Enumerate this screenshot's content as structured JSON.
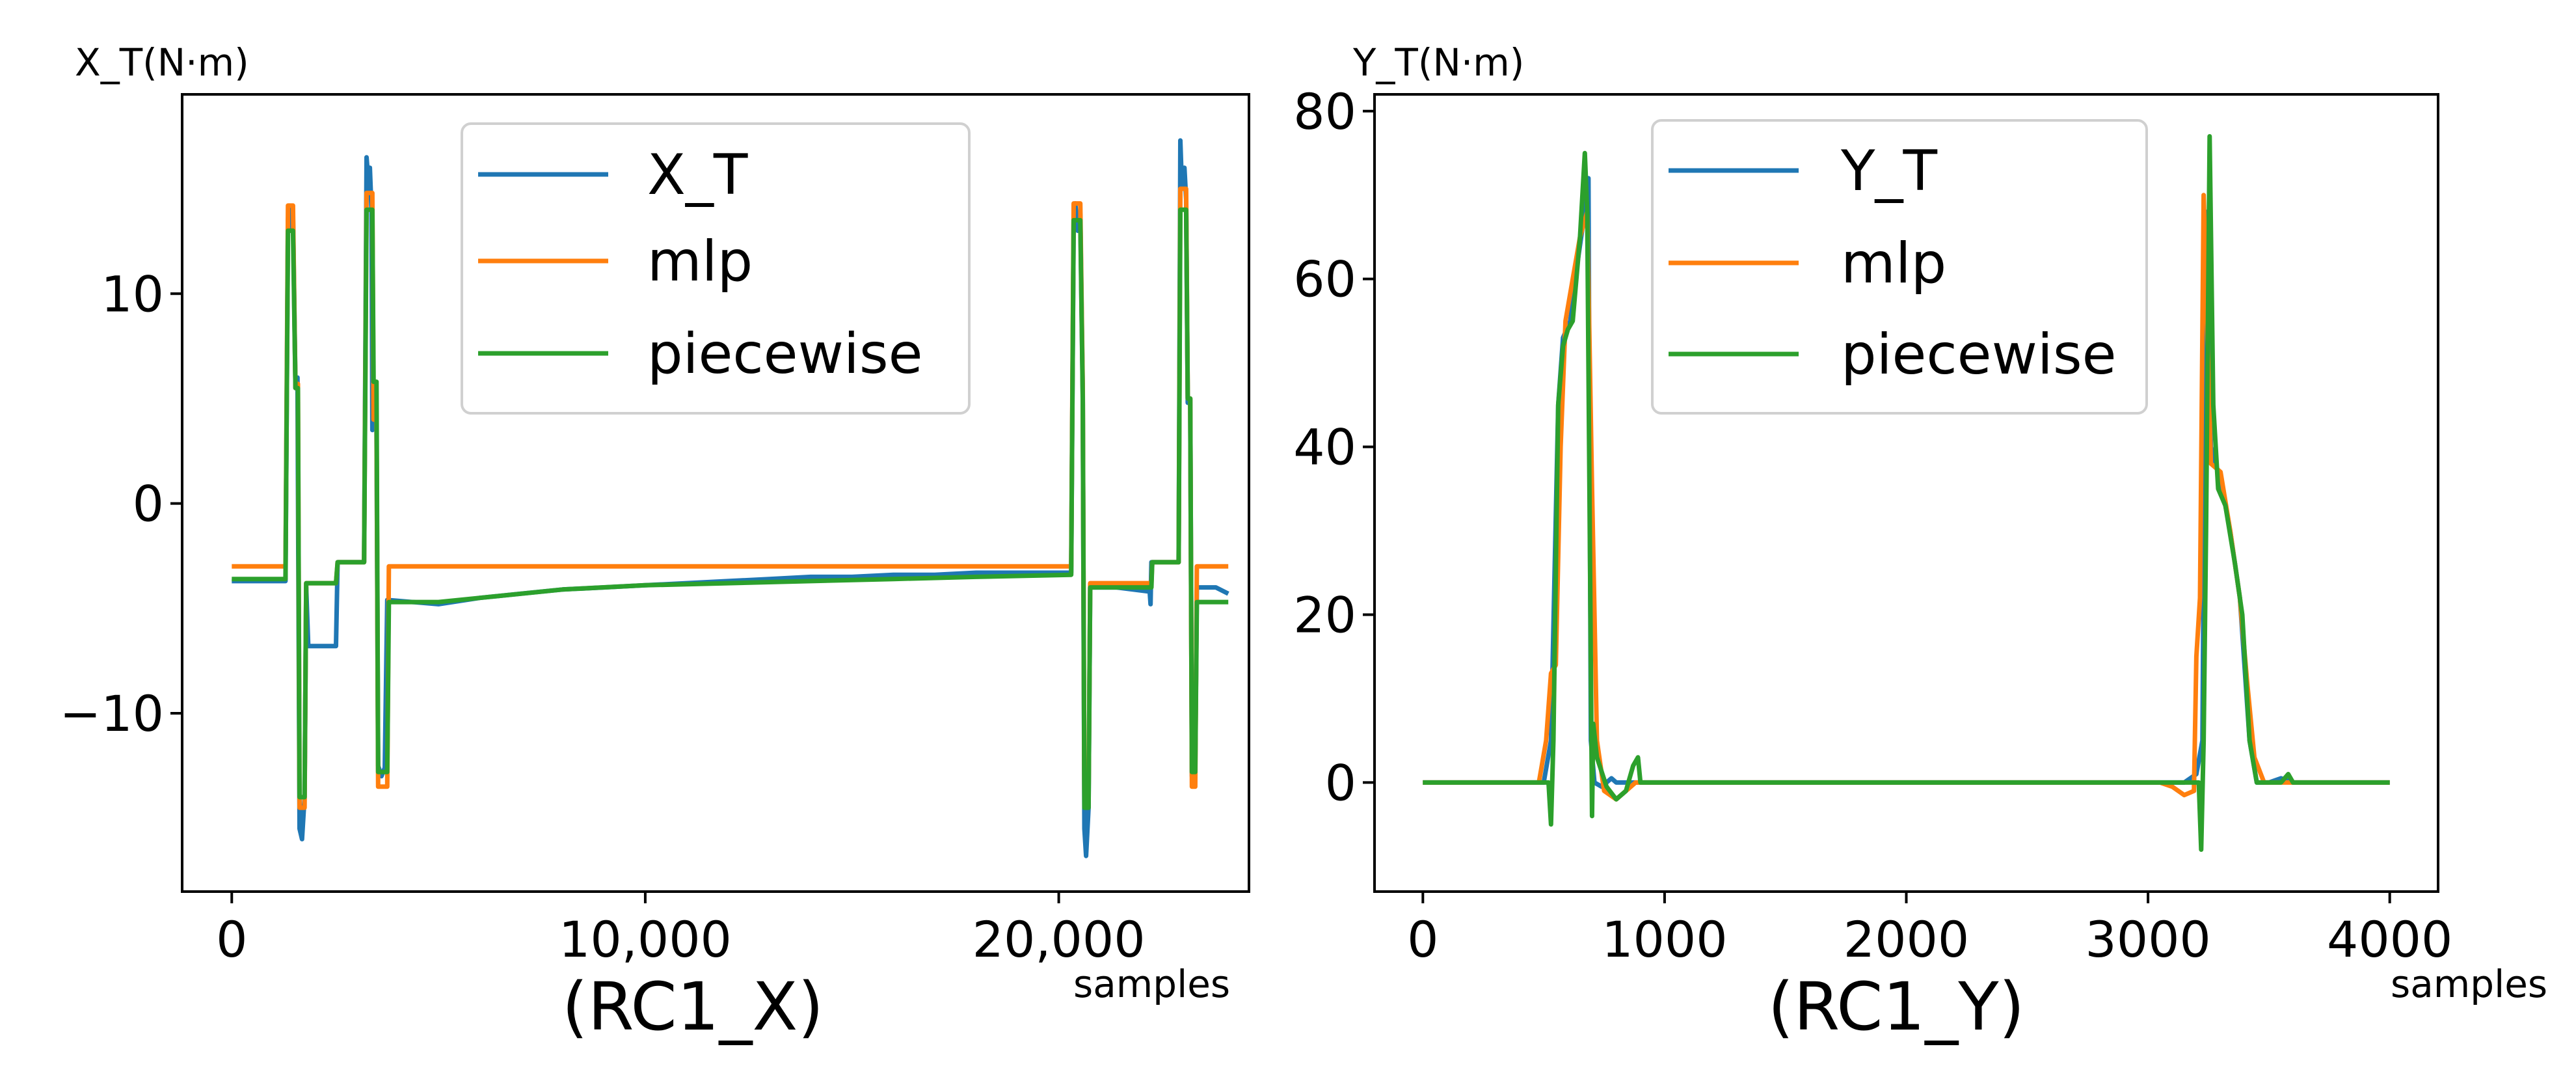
{
  "chart_data": [
    {
      "type": "line",
      "caption": "(RC1_X)",
      "ylabel": "X_T(N·m)",
      "xlabel": "samples",
      "xlim": [
        -1200,
        24600
      ],
      "ylim": [
        -18.5,
        19.5
      ],
      "xticks": [
        0,
        10000,
        20000
      ],
      "xtick_labels": [
        "0",
        "10,000",
        "20,000"
      ],
      "yticks": [
        10,
        0,
        -10
      ],
      "ytick_labels": [
        "10",
        "0",
        "−10"
      ],
      "grid": false,
      "legend_position": "top-center",
      "legend": [
        "X_T",
        "mlp",
        "piecewise"
      ],
      "series": [
        {
          "name": "X_T",
          "color": "#1f77b4",
          "points": [
            [
              0,
              -3.7
            ],
            [
              1300,
              -3.7
            ],
            [
              1360,
              13.5
            ],
            [
              1380,
              14.2
            ],
            [
              1420,
              13.0
            ],
            [
              1480,
              13.8
            ],
            [
              1540,
              5.5
            ],
            [
              1590,
              6.0
            ],
            [
              1640,
              -15.5
            ],
            [
              1700,
              -16.0
            ],
            [
              1760,
              -14.0
            ],
            [
              1800,
              -4.0
            ],
            [
              1850,
              -6.8
            ],
            [
              2100,
              -6.8
            ],
            [
              2520,
              -6.8
            ],
            [
              2560,
              -2.8
            ],
            [
              3200,
              -2.8
            ],
            [
              3260,
              16.5
            ],
            [
              3300,
              15.5
            ],
            [
              3340,
              16.0
            ],
            [
              3380,
              14.0
            ],
            [
              3400,
              3.5
            ],
            [
              3430,
              5.0
            ],
            [
              3500,
              3.5
            ],
            [
              3540,
              -12.5
            ],
            [
              3620,
              -13.0
            ],
            [
              3700,
              -12.6
            ],
            [
              3760,
              -4.6
            ],
            [
              5000,
              -4.8
            ],
            [
              6000,
              -4.5
            ],
            [
              7000,
              -4.3
            ],
            [
              8000,
              -4.1
            ],
            [
              9000,
              -4.0
            ],
            [
              10000,
              -3.9
            ],
            [
              11000,
              -3.8
            ],
            [
              12000,
              -3.7
            ],
            [
              13000,
              -3.6
            ],
            [
              14000,
              -3.5
            ],
            [
              15000,
              -3.5
            ],
            [
              16000,
              -3.4
            ],
            [
              17000,
              -3.4
            ],
            [
              18000,
              -3.3
            ],
            [
              19000,
              -3.3
            ],
            [
              20000,
              -3.3
            ],
            [
              20300,
              -3.3
            ],
            [
              20360,
              13.5
            ],
            [
              20400,
              14.3
            ],
            [
              20460,
              13.0
            ],
            [
              20520,
              13.8
            ],
            [
              20580,
              5.2
            ],
            [
              20620,
              -15.5
            ],
            [
              20660,
              -16.8
            ],
            [
              20720,
              -14.5
            ],
            [
              20760,
              -4.0
            ],
            [
              21400,
              -4.0
            ],
            [
              22200,
              -4.2
            ],
            [
              22220,
              -4.8
            ],
            [
              22240,
              -2.8
            ],
            [
              22900,
              -2.8
            ],
            [
              22940,
              17.3
            ],
            [
              22980,
              15.0
            ],
            [
              23040,
              16.0
            ],
            [
              23080,
              14.5
            ],
            [
              23120,
              4.8
            ],
            [
              23180,
              5.0
            ],
            [
              23220,
              -13.0
            ],
            [
              23300,
              -12.5
            ],
            [
              23340,
              -4.0
            ],
            [
              23800,
              -4.0
            ],
            [
              24100,
              -4.3
            ]
          ]
        },
        {
          "name": "mlp",
          "color": "#ff7f0e",
          "points": [
            [
              0,
              -3.0
            ],
            [
              1300,
              -3.0
            ],
            [
              1360,
              14.2
            ],
            [
              1480,
              14.2
            ],
            [
              1540,
              5.5
            ],
            [
              1600,
              5.7
            ],
            [
              1640,
              -14.5
            ],
            [
              1760,
              -14.5
            ],
            [
              1800,
              -3.8
            ],
            [
              2520,
              -3.8
            ],
            [
              2560,
              -2.8
            ],
            [
              3200,
              -2.8
            ],
            [
              3260,
              14.8
            ],
            [
              3400,
              14.8
            ],
            [
              3430,
              4.0
            ],
            [
              3500,
              4.0
            ],
            [
              3540,
              -13.5
            ],
            [
              3760,
              -13.5
            ],
            [
              3800,
              -3.0
            ],
            [
              20300,
              -3.0
            ],
            [
              20360,
              14.3
            ],
            [
              20520,
              14.3
            ],
            [
              20580,
              5.5
            ],
            [
              20620,
              -14.0
            ],
            [
              20720,
              -14.0
            ],
            [
              20760,
              -3.8
            ],
            [
              22240,
              -3.8
            ],
            [
              22260,
              -2.8
            ],
            [
              22900,
              -2.8
            ],
            [
              22940,
              15.0
            ],
            [
              23080,
              15.0
            ],
            [
              23120,
              5.0
            ],
            [
              23180,
              5.0
            ],
            [
              23220,
              -13.5
            ],
            [
              23300,
              -13.5
            ],
            [
              23340,
              -3.0
            ],
            [
              24100,
              -3.0
            ]
          ]
        },
        {
          "name": "piecewise",
          "color": "#2ca02c",
          "points": [
            [
              0,
              -3.6
            ],
            [
              1300,
              -3.6
            ],
            [
              1360,
              13.0
            ],
            [
              1480,
              13.0
            ],
            [
              1540,
              5.5
            ],
            [
              1600,
              5.5
            ],
            [
              1640,
              -14.0
            ],
            [
              1760,
              -14.0
            ],
            [
              1800,
              -3.8
            ],
            [
              2520,
              -3.8
            ],
            [
              2560,
              -2.8
            ],
            [
              3200,
              -2.8
            ],
            [
              3260,
              14.0
            ],
            [
              3400,
              14.0
            ],
            [
              3430,
              5.8
            ],
            [
              3500,
              5.8
            ],
            [
              3540,
              -12.8
            ],
            [
              3760,
              -12.8
            ],
            [
              3800,
              -4.7
            ],
            [
              5000,
              -4.7
            ],
            [
              6000,
              -4.5
            ],
            [
              8000,
              -4.1
            ],
            [
              10000,
              -3.9
            ],
            [
              12000,
              -3.8
            ],
            [
              14000,
              -3.7
            ],
            [
              16000,
              -3.6
            ],
            [
              18000,
              -3.5
            ],
            [
              20300,
              -3.4
            ],
            [
              20360,
              13.5
            ],
            [
              20520,
              13.5
            ],
            [
              20580,
              5.0
            ],
            [
              20620,
              -14.5
            ],
            [
              20720,
              -14.5
            ],
            [
              20760,
              -4.0
            ],
            [
              22240,
              -4.0
            ],
            [
              22260,
              -2.8
            ],
            [
              22900,
              -2.8
            ],
            [
              22940,
              14.0
            ],
            [
              23080,
              14.0
            ],
            [
              23120,
              5.0
            ],
            [
              23180,
              5.0
            ],
            [
              23220,
              -12.8
            ],
            [
              23300,
              -12.8
            ],
            [
              23340,
              -4.7
            ],
            [
              24100,
              -4.7
            ]
          ]
        }
      ]
    },
    {
      "type": "line",
      "caption": "(RC1_Y)",
      "ylabel": "Y_T(N·m)",
      "xlabel": "samples",
      "xlim": [
        -200,
        4200
      ],
      "ylim": [
        -13,
        82
      ],
      "xticks": [
        0,
        1000,
        2000,
        3000,
        4000
      ],
      "xtick_labels": [
        "0",
        "1000",
        "2000",
        "3000",
        "4000"
      ],
      "yticks": [
        80,
        60,
        40,
        20,
        0
      ],
      "ytick_labels": [
        "80",
        "60",
        "40",
        "20",
        "0"
      ],
      "grid": false,
      "legend_position": "top-center",
      "legend": [
        "Y_T",
        "mlp",
        "piecewise"
      ],
      "series": [
        {
          "name": "Y_T",
          "color": "#1f77b4",
          "points": [
            [
              0,
              0
            ],
            [
              500,
              0
            ],
            [
              530,
              5
            ],
            [
              545,
              25
            ],
            [
              560,
              45
            ],
            [
              580,
              53
            ],
            [
              610,
              55
            ],
            [
              640,
              62
            ],
            [
              670,
              68
            ],
            [
              685,
              72
            ],
            [
              695,
              5
            ],
            [
              710,
              0
            ],
            [
              740,
              -0.5
            ],
            [
              780,
              0.5
            ],
            [
              800,
              0
            ],
            [
              3150,
              0
            ],
            [
              3200,
              1
            ],
            [
              3225,
              5
            ],
            [
              3240,
              68
            ],
            [
              3260,
              40
            ],
            [
              3300,
              36
            ],
            [
              3340,
              30
            ],
            [
              3380,
              22
            ],
            [
              3420,
              5
            ],
            [
              3450,
              0
            ],
            [
              3500,
              0
            ],
            [
              3550,
              0.5
            ],
            [
              3600,
              0
            ],
            [
              4000,
              0
            ]
          ]
        },
        {
          "name": "mlp",
          "color": "#ff7f0e",
          "points": [
            [
              0,
              0
            ],
            [
              480,
              0
            ],
            [
              510,
              5
            ],
            [
              530,
              13
            ],
            [
              550,
              14
            ],
            [
              570,
              40
            ],
            [
              590,
              55
            ],
            [
              620,
              60
            ],
            [
              650,
              65
            ],
            [
              680,
              68
            ],
            [
              700,
              35
            ],
            [
              720,
              5
            ],
            [
              750,
              -1
            ],
            [
              800,
              -2
            ],
            [
              840,
              -1
            ],
            [
              880,
              0
            ],
            [
              3050,
              0
            ],
            [
              3100,
              -0.5
            ],
            [
              3150,
              -1.5
            ],
            [
              3190,
              -1
            ],
            [
              3200,
              15
            ],
            [
              3215,
              22
            ],
            [
              3230,
              70
            ],
            [
              3260,
              38
            ],
            [
              3300,
              37
            ],
            [
              3340,
              30
            ],
            [
              3380,
              22
            ],
            [
              3410,
              12
            ],
            [
              3440,
              3
            ],
            [
              3480,
              0
            ],
            [
              3600,
              0
            ],
            [
              4000,
              0
            ]
          ]
        },
        {
          "name": "piecewise",
          "color": "#2ca02c",
          "points": [
            [
              0,
              0
            ],
            [
              520,
              0
            ],
            [
              530,
              -5
            ],
            [
              540,
              5
            ],
            [
              560,
              45
            ],
            [
              580,
              52
            ],
            [
              600,
              54
            ],
            [
              620,
              55
            ],
            [
              650,
              65
            ],
            [
              670,
              75
            ],
            [
              680,
              68
            ],
            [
              700,
              -4
            ],
            [
              705,
              7
            ],
            [
              720,
              3
            ],
            [
              760,
              -0.5
            ],
            [
              800,
              -2
            ],
            [
              840,
              -1
            ],
            [
              870,
              2
            ],
            [
              890,
              3
            ],
            [
              900,
              0
            ],
            [
              3210,
              0
            ],
            [
              3220,
              -8
            ],
            [
              3230,
              5
            ],
            [
              3240,
              30
            ],
            [
              3255,
              77
            ],
            [
              3270,
              45
            ],
            [
              3290,
              35
            ],
            [
              3320,
              33
            ],
            [
              3360,
              26
            ],
            [
              3390,
              20
            ],
            [
              3420,
              5
            ],
            [
              3450,
              0
            ],
            [
              3550,
              0
            ],
            [
              3580,
              1
            ],
            [
              3600,
              0
            ],
            [
              4000,
              0
            ]
          ]
        }
      ]
    }
  ]
}
